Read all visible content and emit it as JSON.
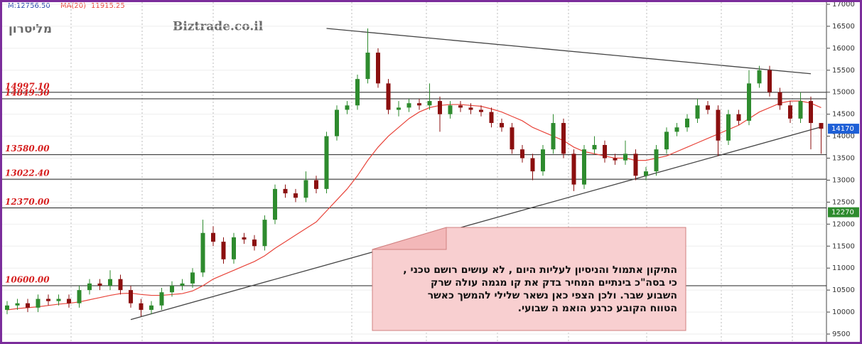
{
  "chart_data": {
    "type": "candlestick",
    "title": "מליסרון",
    "watermark": "Biztrade.co.il",
    "header": {
      "price_label": "M:12756.50",
      "ma_value": "11915.25"
    },
    "ylim": [
      9500,
      17000
    ],
    "yticks": [
      9500,
      10000,
      10500,
      11000,
      11500,
      12000,
      12500,
      13000,
      13500,
      14000,
      14500,
      15000,
      15500,
      16000,
      16500,
      17000
    ],
    "candles": {
      "up_color": "#2e8b2e",
      "down_color": "#8b0f0f",
      "open": [
        10050,
        10150,
        10200,
        10100,
        10300,
        10250,
        10300,
        10200,
        10500,
        10650,
        10600,
        10750,
        10500,
        10200,
        10050,
        10150,
        10450,
        10600,
        10650,
        10900,
        11800,
        11600,
        11200,
        11700,
        11650,
        11500,
        12100,
        12800,
        12700,
        12600,
        13000,
        12800,
        14000,
        14600,
        14700,
        15300,
        15900,
        15200,
        14600,
        14650,
        14750,
        14700,
        14800,
        14500,
        14700,
        14650,
        14600,
        14550,
        14300,
        14200,
        13700,
        13500,
        13200,
        13700,
        14300,
        13600,
        12900,
        13700,
        13800,
        13500,
        13450,
        13600,
        13100,
        13200,
        13700,
        14100,
        14200,
        14400,
        14700,
        14600,
        13900,
        14500,
        14350,
        15200,
        15500,
        15000,
        14700,
        14400,
        14800,
        14300
      ],
      "high": [
        10250,
        10300,
        10300,
        10400,
        10400,
        10400,
        10400,
        10600,
        10750,
        10750,
        10950,
        10850,
        10600,
        10300,
        10250,
        10550,
        10700,
        10750,
        11000,
        12100,
        11950,
        11700,
        11800,
        11800,
        11750,
        12200,
        12900,
        12900,
        12800,
        13200,
        13100,
        14100,
        14700,
        14800,
        15400,
        16450,
        16000,
        15300,
        14800,
        14850,
        14850,
        15200,
        14900,
        14800,
        14800,
        14750,
        14700,
        14650,
        14400,
        14300,
        13800,
        13600,
        13800,
        14500,
        14400,
        13700,
        13800,
        14000,
        13900,
        13600,
        13900,
        13700,
        13300,
        13800,
        14200,
        14300,
        14500,
        14850,
        14800,
        14700,
        14600,
        14600,
        15500,
        15600,
        15600,
        15100,
        14800,
        15000,
        14900,
        14300
      ],
      "low": [
        9950,
        10050,
        10000,
        10000,
        10150,
        10150,
        10100,
        10100,
        10400,
        10500,
        10500,
        10400,
        10100,
        9900,
        9950,
        10050,
        10350,
        10500,
        10550,
        10800,
        11500,
        11100,
        11100,
        11550,
        11400,
        11400,
        12000,
        12600,
        12500,
        12500,
        12700,
        12700,
        13900,
        14500,
        14600,
        15200,
        15100,
        14500,
        14450,
        14550,
        14600,
        14600,
        14100,
        14400,
        14550,
        14500,
        14450,
        14200,
        14100,
        13600,
        13400,
        13000,
        13100,
        13600,
        13500,
        12750,
        12800,
        13600,
        13400,
        13350,
        13350,
        13000,
        13000,
        13100,
        13600,
        14000,
        14100,
        14300,
        14500,
        13550,
        13800,
        14250,
        14250,
        15100,
        14900,
        14600,
        14300,
        14300,
        13700,
        13600
      ],
      "close": [
        10150,
        10200,
        10100,
        10300,
        10250,
        10300,
        10200,
        10500,
        10650,
        10600,
        10750,
        10500,
        10200,
        10050,
        10150,
        10450,
        10600,
        10650,
        10900,
        11800,
        11600,
        11200,
        11700,
        11650,
        11500,
        12100,
        12800,
        12700,
        12600,
        13000,
        12800,
        14000,
        14600,
        14700,
        15300,
        15900,
        15200,
        14600,
        14650,
        14750,
        14700,
        14800,
        14500,
        14700,
        14650,
        14600,
        14550,
        14300,
        14200,
        13700,
        13500,
        13200,
        13700,
        14300,
        13600,
        12900,
        13700,
        13800,
        13500,
        13450,
        13600,
        13100,
        13200,
        13700,
        14100,
        14200,
        14400,
        14700,
        14600,
        13900,
        14500,
        14350,
        15200,
        15500,
        15000,
        14700,
        14400,
        14800,
        14300,
        14170
      ]
    },
    "ma": {
      "name": "MA(20)",
      "color": "#e8443a",
      "values": [
        10050,
        10080,
        10100,
        10120,
        10150,
        10180,
        10200,
        10230,
        10280,
        10330,
        10380,
        10420,
        10430,
        10400,
        10380,
        10380,
        10400,
        10420,
        10480,
        10600,
        10750,
        10850,
        10950,
        11050,
        11150,
        11280,
        11450,
        11600,
        11750,
        11900,
        12050,
        12300,
        12550,
        12800,
        13100,
        13450,
        13750,
        14000,
        14200,
        14400,
        14550,
        14650,
        14700,
        14720,
        14720,
        14700,
        14680,
        14620,
        14550,
        14450,
        14350,
        14200,
        14100,
        14000,
        13900,
        13750,
        13650,
        13600,
        13550,
        13500,
        13500,
        13450,
        13450,
        13500,
        13550,
        13650,
        13750,
        13850,
        13950,
        14050,
        14150,
        14250,
        14400,
        14550,
        14650,
        14750,
        14800,
        14800,
        14750,
        14650
      ]
    },
    "levels": [
      {
        "value": 14997.1,
        "label": "14997.10"
      },
      {
        "value": 14849.3,
        "label": "14849.30"
      },
      {
        "value": 13580,
        "label": "13580.00"
      },
      {
        "value": 13022.4,
        "label": "13022.40"
      },
      {
        "value": 12370,
        "label": "12370.00"
      },
      {
        "value": 10600,
        "label": "10600.00"
      }
    ],
    "trendlines": [
      {
        "x": [
          31,
          78
        ],
        "values": [
          16450,
          15420
        ]
      },
      {
        "x": [
          12,
          79
        ],
        "values": [
          9830,
          14210
        ]
      }
    ],
    "price_tags": [
      14170,
      12270
    ],
    "annotation": {
      "lines": [
        "התיקון אתמול והניסיון לעליות היום , לא עושים רושם טכני ,",
        "כי בסה\"כ בינתיים המחיר בדק את קו מגמה עולה שרק",
        "השבוע שבר. ולכן  הצפי כאן נשאר שלילי להמשך כאשר",
        "הטווח הקובע כרגע הואמ ה שבועי."
      ]
    }
  }
}
